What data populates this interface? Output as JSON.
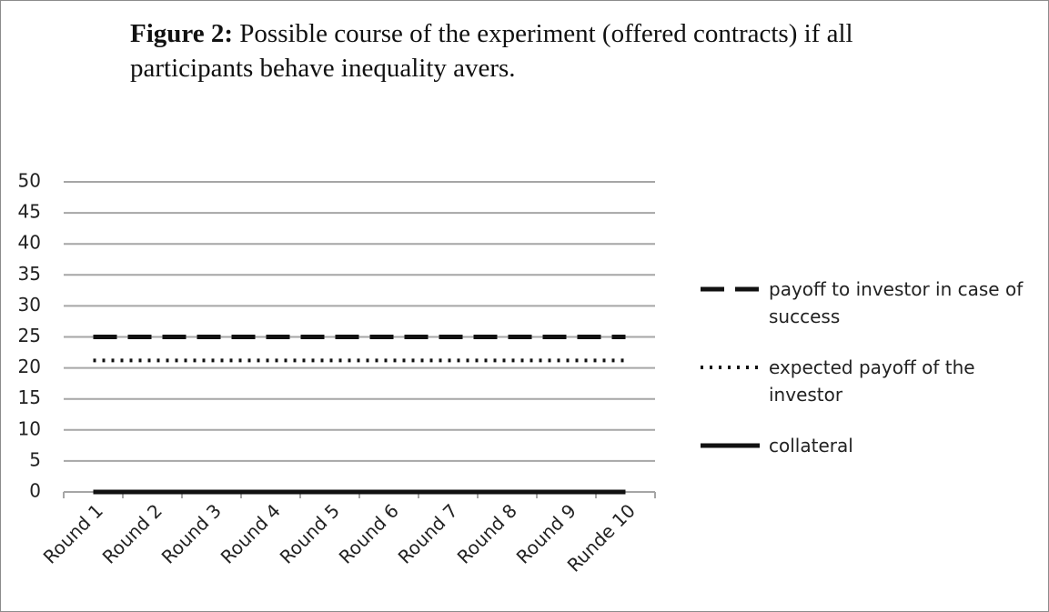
{
  "chart_data": {
    "type": "line",
    "title_label": "Figure 2:",
    "title": "Possible course of the experiment (offered contracts) if all participants behave inequality avers.",
    "categories": [
      "Round 1",
      "Round 2",
      "Round 3",
      "Round 4",
      "Round 5",
      "Round 6",
      "Round 7",
      "Round 8",
      "Round 9",
      "Runde 10"
    ],
    "series": [
      {
        "name": "payoff to investor in case of success",
        "color": "#111111",
        "style": "dashed",
        "values": [
          25,
          25,
          25,
          25,
          25,
          25,
          25,
          25,
          25,
          25
        ]
      },
      {
        "name": "expected payoff of the investor",
        "color": "#111111",
        "style": "dotted",
        "values": [
          21.2,
          21.2,
          21.2,
          21.2,
          21.2,
          21.2,
          21.2,
          21.2,
          21.2,
          21.2
        ]
      },
      {
        "name": "collateral",
        "color": "#111111",
        "style": "solid",
        "values": [
          0,
          0,
          0,
          0,
          0,
          0,
          0,
          0,
          0,
          0
        ]
      }
    ],
    "ylim": [
      0,
      50
    ],
    "yticks": [
      0,
      5,
      10,
      15,
      20,
      25,
      30,
      35,
      40,
      45,
      50
    ],
    "grid": true,
    "legend": "right"
  }
}
